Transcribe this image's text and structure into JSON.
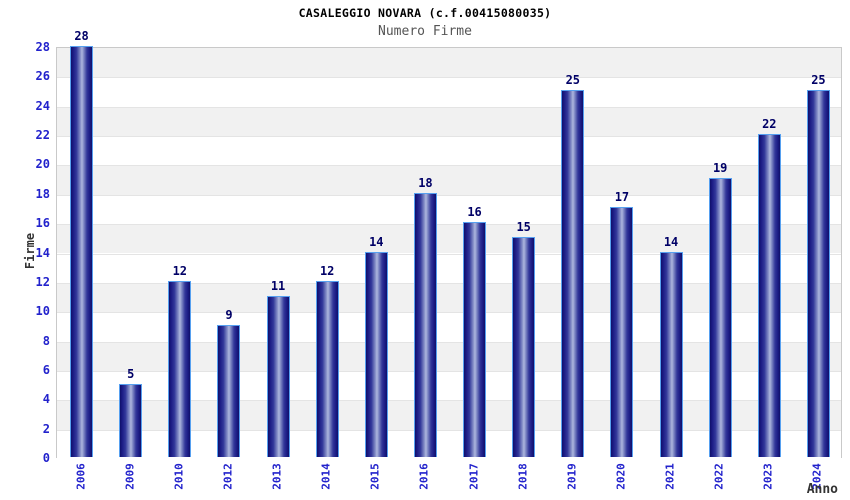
{
  "chart_data": {
    "type": "bar",
    "title": "CASALEGGIO NOVARA (c.f.00415080035)",
    "subtitle": "Numero Firme",
    "ylabel": "Firme",
    "xlabel": "Anno",
    "categories": [
      "2006",
      "2009",
      "2010",
      "2012",
      "2013",
      "2014",
      "2015",
      "2016",
      "2017",
      "2018",
      "2019",
      "2020",
      "2021",
      "2022",
      "2023",
      "2024"
    ],
    "values": [
      28,
      5,
      12,
      9,
      11,
      12,
      14,
      18,
      16,
      15,
      25,
      17,
      14,
      19,
      22,
      25
    ],
    "ylim": [
      0,
      28
    ],
    "ytick_step": 2,
    "grid": "alternating horizontal gray/white bands every 2 units, gray topmost",
    "legend": "none",
    "bar_labels_shown": true,
    "colors": {
      "bar_dark": "#10106a",
      "bar_light": "#aeb6de",
      "bar_border": "#56a0f0",
      "tick_text": "#2222cc",
      "value_text": "#000066",
      "band_gray": "#f1f1f1",
      "band_white": "#ffffff",
      "plot_border": "#c9c9c9",
      "title_text": "#000000",
      "subtitle_text": "#555555",
      "axis_title_text": "#333333",
      "background": "#ffffff"
    }
  }
}
